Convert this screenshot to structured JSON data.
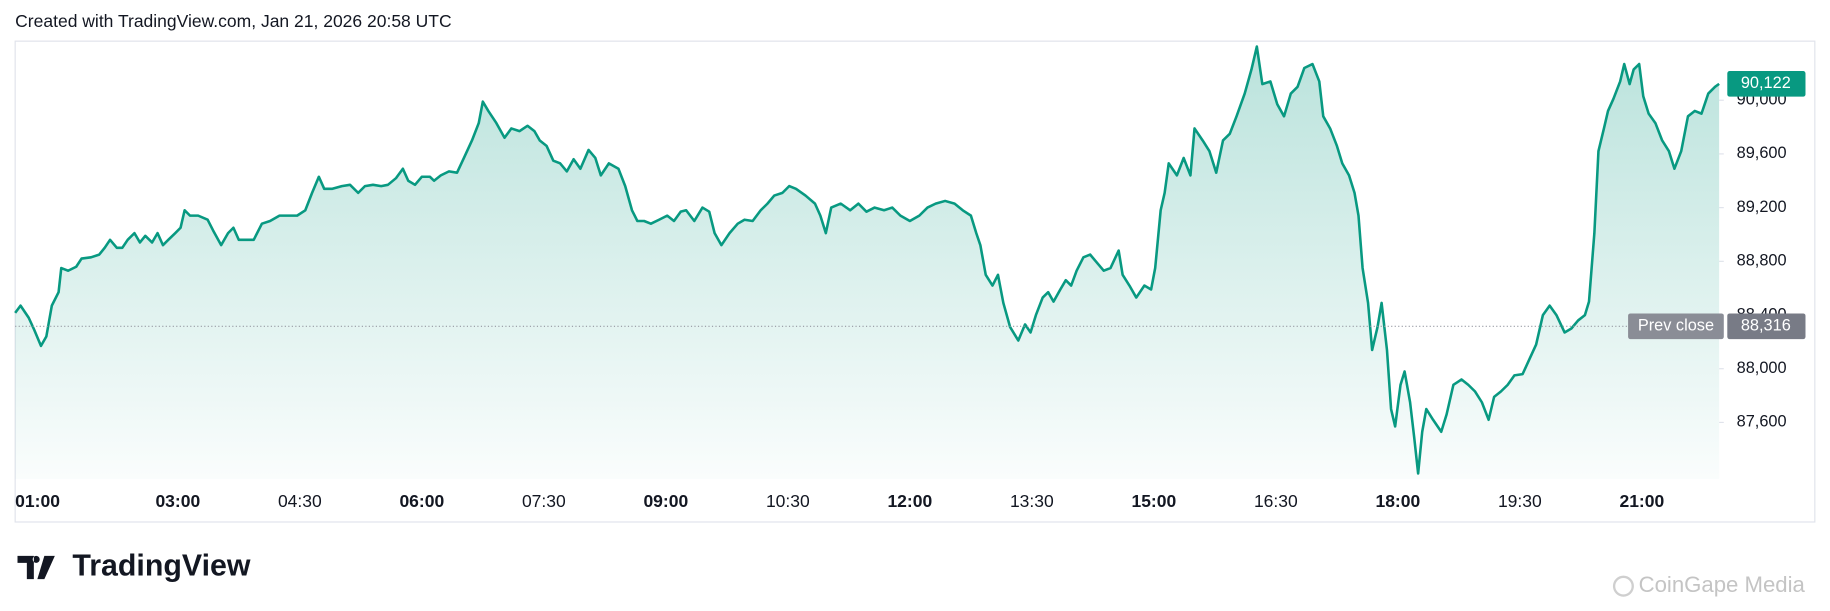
{
  "chart_data": {
    "type": "area",
    "title": "Created with TradingView.com, Jan 21, 2026 20:58 UTC",
    "brand": "TradingView",
    "watermark": "CoinGape Media",
    "color": "#089981",
    "x": [
      60,
      64,
      70,
      74,
      79,
      83,
      87,
      92,
      94,
      99,
      105,
      109,
      116,
      122,
      126,
      130,
      135,
      139,
      143,
      148,
      152,
      156,
      161,
      165,
      169,
      173,
      178,
      182,
      185,
      189,
      195,
      202,
      206,
      212,
      217,
      221,
      225,
      229,
      236,
      242,
      248,
      255,
      262,
      268,
      274,
      279,
      284,
      288,
      294,
      301,
      307,
      313,
      318,
      324,
      330,
      335,
      341,
      346,
      350,
      355,
      360,
      366,
      369,
      374,
      380,
      386,
      391,
      397,
      402,
      405,
      409,
      415,
      421,
      426,
      432,
      438,
      443,
      447,
      452,
      457,
      462,
      467,
      472,
      477,
      483,
      488,
      492,
      498,
      505,
      510,
      515,
      519,
      524,
      529,
      535,
      541,
      546,
      551,
      555,
      561,
      567,
      572,
      576,
      581,
      587,
      593,
      598,
      604,
      610,
      615,
      620,
      626,
      631,
      636,
      643,
      650,
      654,
      658,
      662,
      669,
      676,
      682,
      688,
      694,
      701,
      707,
      713,
      720,
      727,
      733,
      739,
      746,
      753,
      759,
      765,
      769,
      772,
      776,
      781,
      785,
      789,
      794,
      800,
      805,
      809,
      813,
      818,
      822,
      826,
      831,
      835,
      839,
      843,
      848,
      853,
      858,
      863,
      868,
      874,
      877,
      882,
      887,
      893,
      898,
      901,
      905,
      908,
      911,
      917,
      922,
      927,
      930,
      936,
      941,
      946,
      951,
      956,
      961,
      967,
      972,
      976,
      980,
      986,
      991,
      996,
      1001,
      1006,
      1011,
      1017,
      1022,
      1025,
      1030,
      1035,
      1039,
      1044,
      1048,
      1051,
      1054,
      1058,
      1061,
      1065,
      1068,
      1072,
      1075,
      1078,
      1082,
      1085,
      1089,
      1092,
      1095,
      1098,
      1101,
      1106,
      1112,
      1116,
      1121,
      1127,
      1132,
      1137,
      1142,
      1147,
      1151,
      1156,
      1161,
      1166,
      1172,
      1177,
      1182,
      1187,
      1192,
      1197,
      1203,
      1208,
      1213,
      1218,
      1221,
      1225,
      1228,
      1232,
      1235,
      1239,
      1244,
      1247,
      1251,
      1254,
      1258,
      1261,
      1265,
      1270,
      1275,
      1280,
      1284,
      1289,
      1294,
      1299,
      1304,
      1309,
      1314,
      1317
    ],
    "values": [
      88416,
      88470,
      88380,
      88290,
      88170,
      88240,
      88470,
      88570,
      88750,
      88730,
      88760,
      88820,
      88830,
      88850,
      88900,
      88960,
      88900,
      88900,
      88960,
      89010,
      88940,
      88990,
      88940,
      89010,
      88920,
      88960,
      89010,
      89050,
      89180,
      89140,
      89140,
      89110,
      89030,
      88920,
      89010,
      89050,
      88960,
      88960,
      88960,
      89080,
      89100,
      89140,
      89140,
      89140,
      89180,
      89310,
      89430,
      89340,
      89340,
      89360,
      89370,
      89310,
      89360,
      89370,
      89360,
      89370,
      89420,
      89490,
      89400,
      89370,
      89430,
      89430,
      89400,
      89440,
      89470,
      89460,
      89570,
      89700,
      89830,
      89990,
      89920,
      89830,
      89720,
      89790,
      89770,
      89810,
      89770,
      89700,
      89660,
      89550,
      89530,
      89470,
      89560,
      89490,
      89630,
      89570,
      89440,
      89530,
      89490,
      89360,
      89180,
      89100,
      89100,
      89080,
      89110,
      89140,
      89100,
      89170,
      89180,
      89100,
      89200,
      89170,
      89010,
      88920,
      89010,
      89080,
      89110,
      89100,
      89180,
      89230,
      89290,
      89310,
      89360,
      89340,
      89290,
      89230,
      89140,
      89010,
      89200,
      89230,
      89180,
      89230,
      89170,
      89200,
      89180,
      89200,
      89140,
      89100,
      89140,
      89200,
      89230,
      89250,
      89230,
      89180,
      89140,
      89010,
      88920,
      88700,
      88620,
      88700,
      88490,
      88310,
      88210,
      88330,
      88270,
      88400,
      88530,
      88570,
      88500,
      88590,
      88660,
      88620,
      88730,
      88830,
      88850,
      88790,
      88730,
      88750,
      88880,
      88700,
      88620,
      88530,
      88620,
      88590,
      88750,
      89180,
      89310,
      89530,
      89440,
      89570,
      89440,
      89790,
      89700,
      89620,
      89460,
      89700,
      89750,
      89880,
      90050,
      90230,
      90400,
      90120,
      90140,
      89970,
      89880,
      90050,
      90100,
      90240,
      90270,
      90140,
      89880,
      89790,
      89660,
      89530,
      89440,
      89310,
      89140,
      88750,
      88490,
      88140,
      88310,
      88490,
      88140,
      87700,
      87570,
      87880,
      87980,
      87750,
      87490,
      87220,
      87530,
      87700,
      87620,
      87530,
      87660,
      87880,
      87920,
      87880,
      87830,
      87750,
      87620,
      87790,
      87830,
      87880,
      87950,
      87960,
      88070,
      88180,
      88400,
      88470,
      88400,
      88270,
      88300,
      88360,
      88400,
      88500,
      89010,
      89620,
      89790,
      89920,
      90010,
      90140,
      90270,
      90120,
      90230,
      90270,
      90030,
      89900,
      89830,
      89700,
      89620,
      89490,
      89620,
      89880,
      89920,
      89900,
      90050,
      90100,
      90122
    ],
    "xlim": [
      60,
      1317
    ],
    "xticks": [
      {
        "value": 60,
        "label": "01:00"
      },
      {
        "value": 180,
        "label": "03:00"
      },
      {
        "value": 270,
        "label": "04:30"
      },
      {
        "value": 360,
        "label": "06:00"
      },
      {
        "value": 450,
        "label": "07:30"
      },
      {
        "value": 540,
        "label": "09:00"
      },
      {
        "value": 630,
        "label": "10:30"
      },
      {
        "value": 720,
        "label": "12:00"
      },
      {
        "value": 810,
        "label": "13:30"
      },
      {
        "value": 900,
        "label": "15:00"
      },
      {
        "value": 990,
        "label": "16:30"
      },
      {
        "value": 1080,
        "label": "18:00"
      },
      {
        "value": 1170,
        "label": "19:30"
      },
      {
        "value": 1260,
        "label": "21:00"
      }
    ],
    "ylim": [
      87180,
      90440
    ],
    "yticks": [
      {
        "value": 87600,
        "label": "87,600"
      },
      {
        "value": 88000,
        "label": "88,000"
      },
      {
        "value": 88400,
        "label": "88,400"
      },
      {
        "value": 88800,
        "label": "88,800"
      },
      {
        "value": 89200,
        "label": "89,200"
      },
      {
        "value": 89600,
        "label": "89,600"
      },
      {
        "value": 90000,
        "label": "90,000"
      }
    ],
    "last_price": {
      "value": 90122,
      "label": "90,122"
    },
    "prev_close": {
      "name": "Prev close",
      "value": 88316,
      "label": "88,316"
    }
  }
}
